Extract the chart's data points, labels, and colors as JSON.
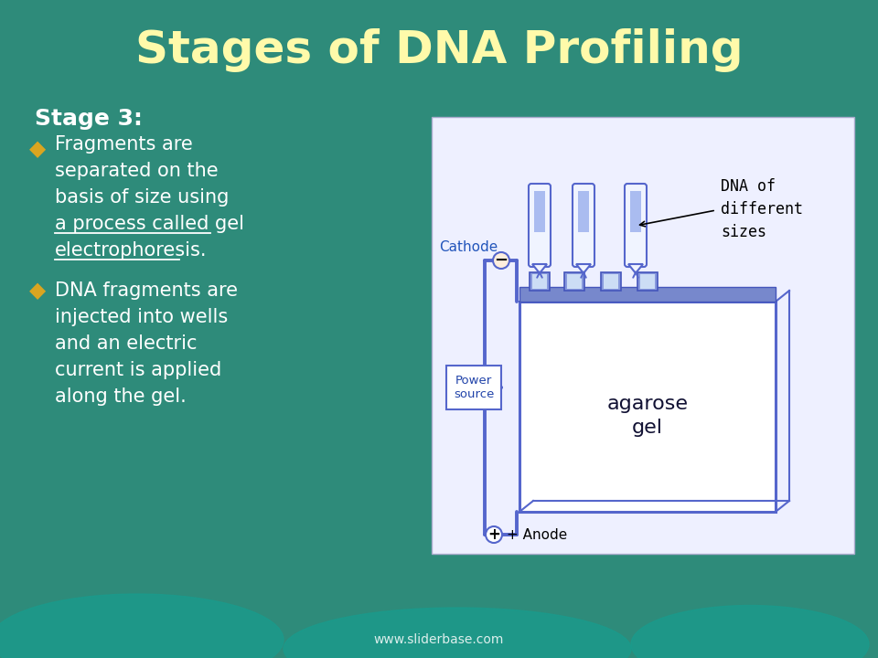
{
  "title": "Stages of DNA Profiling",
  "title_color": "#FFFAAA",
  "title_fontsize": 36,
  "bg_color": "#2E8B7A",
  "blob_color": "#1A9B8C",
  "stage_label": "Stage 3:",
  "bullet_color": "#DAA520",
  "text_color": "white",
  "bullet1_line1": "Fragments are",
  "bullet1_line2": "separated on the",
  "bullet1_line3": "basis of size using",
  "bullet1_line4": "a process called gel",
  "bullet1_line5": "electrophoresis.",
  "bullet2_line1": "DNA fragments are",
  "bullet2_line2": "injected into wells",
  "bullet2_line3": "and an electric",
  "bullet2_line4": "current is applied",
  "bullet2_line5": "along the gel.",
  "footer": "www.sliderbase.com",
  "image_bg": "#E8EEFF",
  "diagram_border": "#5566CC",
  "cathode_label": "Cathode",
  "anode_label": "+ Anode",
  "power_label": "Power\nsource",
  "gel_label": "agarose\ngel",
  "dna_label": "DNA of\ndifferent\nsizes",
  "minus_sign": "−",
  "plus_sign": "+"
}
